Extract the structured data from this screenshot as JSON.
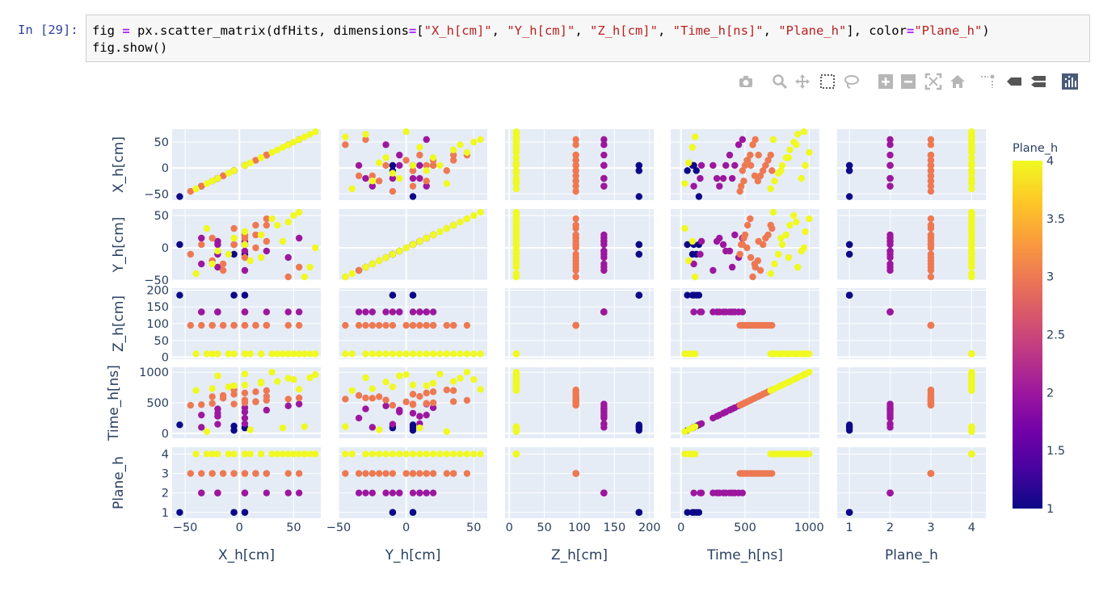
{
  "cell": {
    "prompt": "In [29]:",
    "code_tokens": [
      {
        "t": "fig ",
        "c": ""
      },
      {
        "t": "=",
        "c": "o"
      },
      {
        "t": " px.scatter_matrix(dfHits, dimensions",
        "c": ""
      },
      {
        "t": "=",
        "c": "o"
      },
      {
        "t": "[",
        "c": ""
      },
      {
        "t": "\"X_h[cm]\"",
        "c": "s"
      },
      {
        "t": ", ",
        "c": ""
      },
      {
        "t": "\"Y_h[cm]\"",
        "c": "s"
      },
      {
        "t": ", ",
        "c": ""
      },
      {
        "t": "\"Z_h[cm]\"",
        "c": "s"
      },
      {
        "t": ", ",
        "c": ""
      },
      {
        "t": "\"Time_h[ns]\"",
        "c": "s"
      },
      {
        "t": ", ",
        "c": ""
      },
      {
        "t": "\"Plane_h\"",
        "c": "s"
      },
      {
        "t": "], color",
        "c": ""
      },
      {
        "t": "=",
        "c": "o"
      },
      {
        "t": "\"Plane_h\"",
        "c": "s"
      },
      {
        "t": ")\nfig.show()",
        "c": ""
      }
    ]
  },
  "modebar": [
    "camera-icon",
    "zoom-icon",
    "pan-icon",
    "box-select-icon",
    "lasso-icon",
    "zoom-in-icon",
    "zoom-out-icon",
    "autoscale-icon",
    "reset-axes-icon",
    "spike-lines-icon",
    "hover-closest-icon",
    "hover-compare-icon",
    "plotly-logo-icon"
  ],
  "chart_data": {
    "type": "scatter",
    "dimensions": [
      "X_h[cm]",
      "Y_h[cm]",
      "Z_h[cm]",
      "Time_h[ns]",
      "Plane_h"
    ],
    "axis_ranges": {
      "X_h[cm]": [
        -62,
        75
      ],
      "Y_h[cm]": [
        -50,
        60
      ],
      "Z_h[cm]": [
        -6,
        206
      ],
      "Time_h[ns]": [
        -80,
        1080
      ],
      "Plane_h": [
        0.7,
        4.35
      ]
    },
    "tick_values": {
      "X_h[cm]": [
        -50,
        0,
        50
      ],
      "Y_h[cm]": [
        -50,
        0,
        50
      ],
      "Z_h[cm]": [
        0,
        50,
        100,
        150,
        200
      ],
      "Time_h[ns]": [
        0,
        500,
        1000
      ],
      "Plane_h": [
        1,
        2,
        3,
        4
      ]
    },
    "tick_labels": {
      "X_h[cm]": [
        "−50",
        "0",
        "50"
      ],
      "Y_h[cm]": [
        "−50",
        "0",
        "50"
      ],
      "Z_h[cm]": [
        "0",
        "50",
        "100",
        "150",
        "200"
      ],
      "Time_h[ns]": [
        "0",
        "500",
        "1000"
      ],
      "Plane_h": [
        "1",
        "2",
        "3",
        "4"
      ]
    },
    "color": {
      "title": "Plane_h",
      "min": 1,
      "max": 4,
      "ticks": [
        "1",
        "1.5",
        "2",
        "2.5",
        "3",
        "3.5",
        "4"
      ],
      "tick_values": [
        1,
        1.5,
        2,
        2.5,
        3,
        3.5,
        4
      ],
      "scale": [
        "#0d0887",
        "#46039f",
        "#7201a8",
        "#9c179e",
        "#bd3786",
        "#d8576b",
        "#ed7953",
        "#fb9f3a",
        "#fdca26",
        "#f0f921"
      ]
    },
    "groups": [
      {
        "plane": 1,
        "z": 185,
        "color": "#0d0887",
        "x": [
          -55,
          -5,
          5,
          5,
          -5
        ],
        "y": [
          5,
          5,
          5,
          -10,
          -10
        ],
        "time": [
          140,
          50,
          100,
          90,
          120
        ]
      },
      {
        "plane": 2,
        "z": 135,
        "color": "#9c179e",
        "x": [
          -35,
          -20,
          5,
          -20,
          -35,
          -20,
          5,
          25,
          -20,
          5,
          45,
          55,
          5
        ],
        "y": [
          -25,
          -10,
          -35,
          10,
          15,
          5,
          -5,
          -5,
          -30,
          20,
          -15,
          15,
          10
        ],
        "time": [
          100,
          150,
          250,
          280,
          300,
          330,
          350,
          380,
          400,
          420,
          450,
          480,
          160
        ]
      },
      {
        "plane": 3,
        "z": 95,
        "color": "#ed7953",
        "x": [
          -45,
          -35,
          -5,
          -25,
          5,
          15,
          25,
          45,
          55,
          -25,
          -15,
          -5,
          5,
          15,
          25,
          -5,
          15,
          5,
          -15,
          25
        ],
        "y": [
          -10,
          5,
          5,
          15,
          20,
          35,
          45,
          -45,
          -30,
          -20,
          -35,
          5,
          15,
          20,
          35,
          30,
          0,
          -15,
          -25,
          10
        ],
        "time": [
          460,
          470,
          480,
          490,
          500,
          520,
          540,
          560,
          580,
          600,
          620,
          640,
          660,
          680,
          700,
          710,
          515,
          545,
          575,
          605
        ]
      },
      {
        "plane": 4,
        "z": 10,
        "color": "#f0f921",
        "x": [
          -40,
          -25,
          -10,
          5,
          20,
          35,
          50,
          65,
          -20,
          5,
          30,
          55,
          -5,
          20,
          45,
          70,
          -30,
          10,
          40,
          60
        ],
        "y": [
          -40,
          -25,
          -10,
          5,
          20,
          35,
          50,
          -30,
          -5,
          25,
          45,
          55,
          15,
          -15,
          40,
          0,
          30,
          -20,
          10,
          -45
        ],
        "time": [
          700,
          730,
          760,
          790,
          820,
          850,
          880,
          910,
          940,
          970,
          1000,
          720,
          780,
          840,
          900,
          960,
          30,
          60,
          90,
          110
        ]
      }
    ]
  }
}
